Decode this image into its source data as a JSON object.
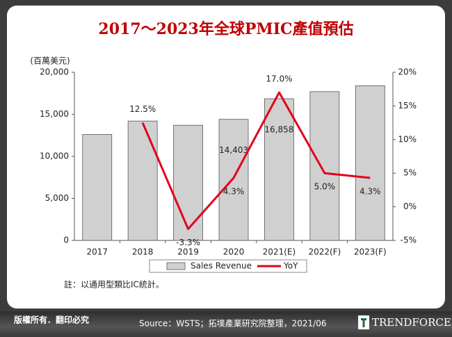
{
  "chart_data": {
    "type": "bar_line",
    "title": "2017～2023年全球PMIC產值預估",
    "y_label": "(百萬美元)",
    "categories": [
      "2017",
      "2018",
      "2019",
      "2020",
      "2021(E)",
      "2022(F)",
      "2023(F)"
    ],
    "series": [
      {
        "name": "Sales Revenue",
        "type": "bar",
        "color": "#d0d0d0",
        "values": [
          12600,
          14200,
          13700,
          14403,
          16858,
          17700,
          18400
        ],
        "value_labels": [
          null,
          null,
          null,
          "14,403",
          "16,858",
          null,
          null
        ]
      },
      {
        "name": "YoY",
        "type": "line",
        "axis": "y2",
        "color": "#e3001b",
        "values": [
          null,
          12.5,
          -3.3,
          4.3,
          17.0,
          5.0,
          4.3
        ],
        "value_labels": [
          null,
          "12.5%",
          "-3.3%",
          "4.3%",
          "17.0%",
          "5.0%",
          "4.3%"
        ]
      }
    ],
    "ylim": [
      0,
      20000
    ],
    "yticks": [
      0,
      {
        "value": 5000,
        "label": "5,000"
      },
      {
        "value": 10000,
        "label": "10,000"
      },
      {
        "value": 15000,
        "label": "15,000"
      },
      {
        "value": 20000,
        "label": "20,000"
      }
    ],
    "y2lim": [
      -5,
      20
    ],
    "y2ticks": [
      {
        "value": -5,
        "label": "-5%"
      },
      {
        "value": 0,
        "label": "0%"
      },
      {
        "value": 5,
        "label": "5%"
      },
      {
        "value": 10,
        "label": "10%"
      },
      {
        "value": 15,
        "label": "15%"
      },
      {
        "value": 20,
        "label": "20%"
      }
    ],
    "grid": false,
    "legend": "bottom"
  },
  "note": "註：以通用型類比IC統計。",
  "copyright": "版權所有．翻印必究",
  "source": "Source：WSTS；拓墣產業研究院整理，2021/06",
  "logo": "TRENDFORCE"
}
